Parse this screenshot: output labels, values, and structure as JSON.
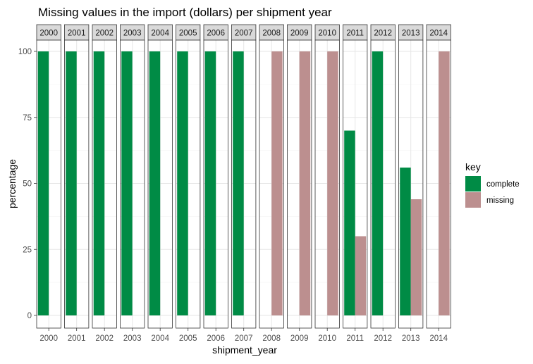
{
  "chart_data": {
    "type": "bar",
    "title": "Missing values in the import (dollars) per shipment year",
    "xlabel": "shipment_year",
    "ylabel": "percentage",
    "ylim": [
      0,
      100
    ],
    "yticks": [
      0,
      25,
      50,
      75,
      100
    ],
    "grid": true,
    "legend": {
      "title": "key",
      "position": "right"
    },
    "facets": [
      "2000",
      "2001",
      "2002",
      "2003",
      "2004",
      "2005",
      "2006",
      "2007",
      "2008",
      "2009",
      "2010",
      "2011",
      "2012",
      "2013",
      "2014"
    ],
    "series": [
      {
        "name": "complete",
        "color": "#008B45",
        "values": [
          100,
          100,
          100,
          100,
          100,
          100,
          100,
          100,
          0,
          0,
          0,
          70,
          100,
          56,
          0
        ]
      },
      {
        "name": "missing",
        "color": "#BC8F8F",
        "values": [
          0,
          0,
          0,
          0,
          0,
          0,
          0,
          0,
          100,
          100,
          100,
          30,
          0,
          44,
          100
        ]
      }
    ]
  }
}
